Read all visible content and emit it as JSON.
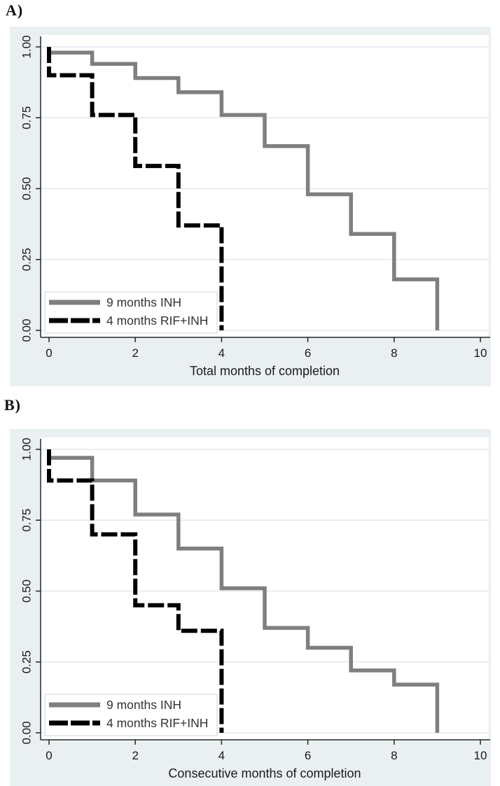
{
  "colors": {
    "figure_background": "#eaeff2",
    "plot_background": "#ffffff",
    "gridline": "#dfe9ef",
    "axis_line": "#262626",
    "tick_label": "#1a1a1a",
    "legend_border": "#d4dbdf",
    "legend_background": "#ffffff",
    "legend_text": "#333333",
    "series_gray": "#7f7f7f",
    "series_black": "#000000"
  },
  "chart_data": [
    {
      "panel_label": "A)",
      "type": "line",
      "subtype": "kaplan-meier-step",
      "title": "",
      "xlabel": "Total months of completion",
      "ylabel": "",
      "xlim": [
        0,
        10.4
      ],
      "ylim": [
        0,
        1.04
      ],
      "x_ticks": [
        0,
        2,
        4,
        6,
        8,
        10
      ],
      "y_tick_labels": [
        "0.00",
        "0.25",
        "0.50",
        "0.75",
        "1.00"
      ],
      "grid": "horizontal",
      "legend_position": "bottom-left",
      "series": [
        {
          "name": "9 months INH",
          "color": "#7f7f7f",
          "dash": "solid",
          "stroke_width": 5.5,
          "start_y": 1.0,
          "steps": [
            [
              0,
              0.98
            ],
            [
              1,
              0.94
            ],
            [
              2,
              0.89
            ],
            [
              3,
              0.84
            ],
            [
              4,
              0.76
            ],
            [
              5,
              0.65
            ],
            [
              6,
              0.48
            ],
            [
              7,
              0.34
            ],
            [
              8,
              0.18
            ],
            [
              9,
              0.0
            ]
          ]
        },
        {
          "name": "4 months RIF+INH",
          "color": "#000000",
          "dash": "dashed",
          "stroke_width": 6,
          "start_y": 1.0,
          "steps": [
            [
              0,
              0.9
            ],
            [
              1,
              0.76
            ],
            [
              2,
              0.58
            ],
            [
              3,
              0.37
            ],
            [
              4,
              0.0
            ]
          ]
        }
      ]
    },
    {
      "panel_label": "B)",
      "type": "line",
      "subtype": "kaplan-meier-step",
      "title": "",
      "xlabel": "Consecutive months of completion",
      "ylabel": "",
      "xlim": [
        0,
        10.4
      ],
      "ylim": [
        0,
        1.04
      ],
      "x_ticks": [
        0,
        2,
        4,
        6,
        8,
        10
      ],
      "y_tick_labels": [
        "0.00",
        "0.25",
        "0.50",
        "0.75",
        "1.00"
      ],
      "grid": "horizontal",
      "legend_position": "bottom-left",
      "series": [
        {
          "name": "9 months INH",
          "color": "#7f7f7f",
          "dash": "solid",
          "stroke_width": 5.5,
          "start_y": 1.0,
          "steps": [
            [
              0,
              0.97
            ],
            [
              1,
              0.89
            ],
            [
              2,
              0.77
            ],
            [
              3,
              0.65
            ],
            [
              4,
              0.51
            ],
            [
              5,
              0.37
            ],
            [
              6,
              0.3
            ],
            [
              7,
              0.22
            ],
            [
              8,
              0.17
            ],
            [
              9,
              0.0
            ]
          ]
        },
        {
          "name": "4 months RIF+INH",
          "color": "#000000",
          "dash": "dashed",
          "stroke_width": 6,
          "start_y": 1.0,
          "steps": [
            [
              0,
              0.89
            ],
            [
              1,
              0.7
            ],
            [
              2,
              0.45
            ],
            [
              3,
              0.36
            ],
            [
              4,
              0.0
            ]
          ]
        }
      ]
    }
  ]
}
